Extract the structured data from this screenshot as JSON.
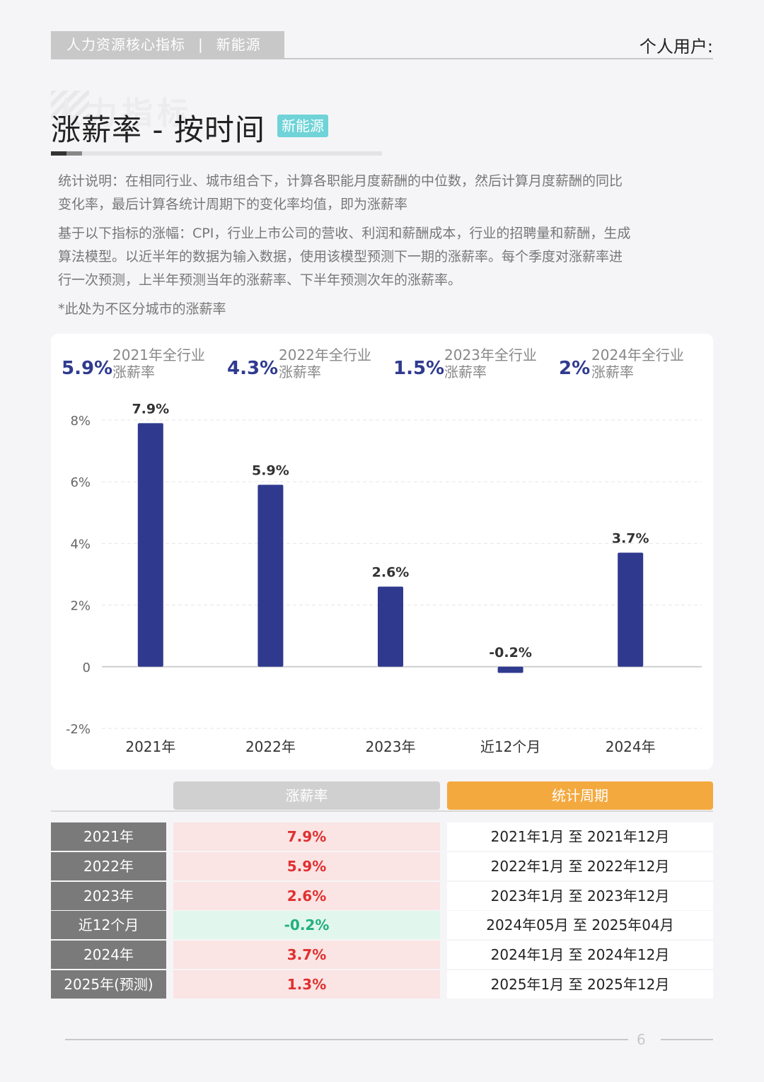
{
  "header": {
    "tag_left": "人力资源核心指标",
    "tag_sep": "|",
    "tag_right": "新能源",
    "user_label": "个人用户:"
  },
  "watermark": "人力指标",
  "title": {
    "text": "涨薪率 - 按时间",
    "badge": "新能源"
  },
  "description": {
    "p1": [
      "统计说明：在相同行业、城市组合下，计算各职能月度薪酬的中位数，然后计算月度薪酬的同比",
      "变化率，最后计算各统计周期下的变化率均值，即为涨薪率"
    ],
    "p2": [
      "基于以下指标的涨幅：CPI，行业上市公司的营收、利润和薪酬成本，行业的招聘量和薪酬，生成",
      "算法模型。以近半年的数据为输入数据，使用该模型预测下一期的涨薪率。每个季度对涨薪率进",
      "行一次预测，上半年预测当年的涨薪率、下半年预测次年的涨薪率。"
    ],
    "note": "*此处为不区分城市的涨薪率"
  },
  "kpis": [
    {
      "value": "5.9%",
      "label1": "2021年全行业",
      "label2": "涨薪率"
    },
    {
      "value": "4.3%",
      "label1": "2022年全行业",
      "label2": "涨薪率"
    },
    {
      "value": "1.5%",
      "label1": "2023年全行业",
      "label2": "涨薪率"
    },
    {
      "value": "2%",
      "label1": "2024年全行业",
      "label2": "涨薪率"
    }
  ],
  "chart_data": {
    "type": "bar",
    "categories": [
      "2021年",
      "2022年",
      "2023年",
      "近12个月",
      "2024年"
    ],
    "values": [
      7.9,
      5.9,
      2.6,
      -0.2,
      3.7
    ],
    "value_labels": [
      "7.9%",
      "5.9%",
      "2.6%",
      "-0.2%",
      "3.7%"
    ],
    "yticks": [
      8,
      6,
      4,
      2,
      0,
      -2
    ],
    "ytick_labels": [
      "8%",
      "6%",
      "4%",
      "2%",
      "0",
      "-2%"
    ],
    "ylim": [
      -2,
      8
    ],
    "grid": true,
    "bar_color": "#2f3a8f",
    "title": "",
    "xlabel": "",
    "ylabel": ""
  },
  "table": {
    "head_rate": "涨薪率",
    "head_period": "统计周期",
    "rows": [
      {
        "label": "2021年",
        "rate": "7.9%",
        "period": "2021年1月 至 2021年12月",
        "sign": "pos"
      },
      {
        "label": "2022年",
        "rate": "5.9%",
        "period": "2022年1月 至 2022年12月",
        "sign": "pos"
      },
      {
        "label": "2023年",
        "rate": "2.6%",
        "period": "2023年1月 至 2023年12月",
        "sign": "pos"
      },
      {
        "label": "近12个月",
        "rate": "-0.2%",
        "period": "2024年05月 至 2025年04月",
        "sign": "neg"
      },
      {
        "label": "2024年",
        "rate": "3.7%",
        "period": "2024年1月 至 2024年12月",
        "sign": "pos"
      },
      {
        "label": "2025年(预测)",
        "rate": "1.3%",
        "period": "2025年1月 至 2025年12月",
        "sign": "pos"
      }
    ]
  },
  "footer": {
    "page": "6"
  },
  "colors": {
    "accent": "#2f3a8f",
    "badge": "#6fd3d8",
    "period_head": "#f4a93f",
    "positive": "#e03030",
    "negative": "#22b07a"
  }
}
